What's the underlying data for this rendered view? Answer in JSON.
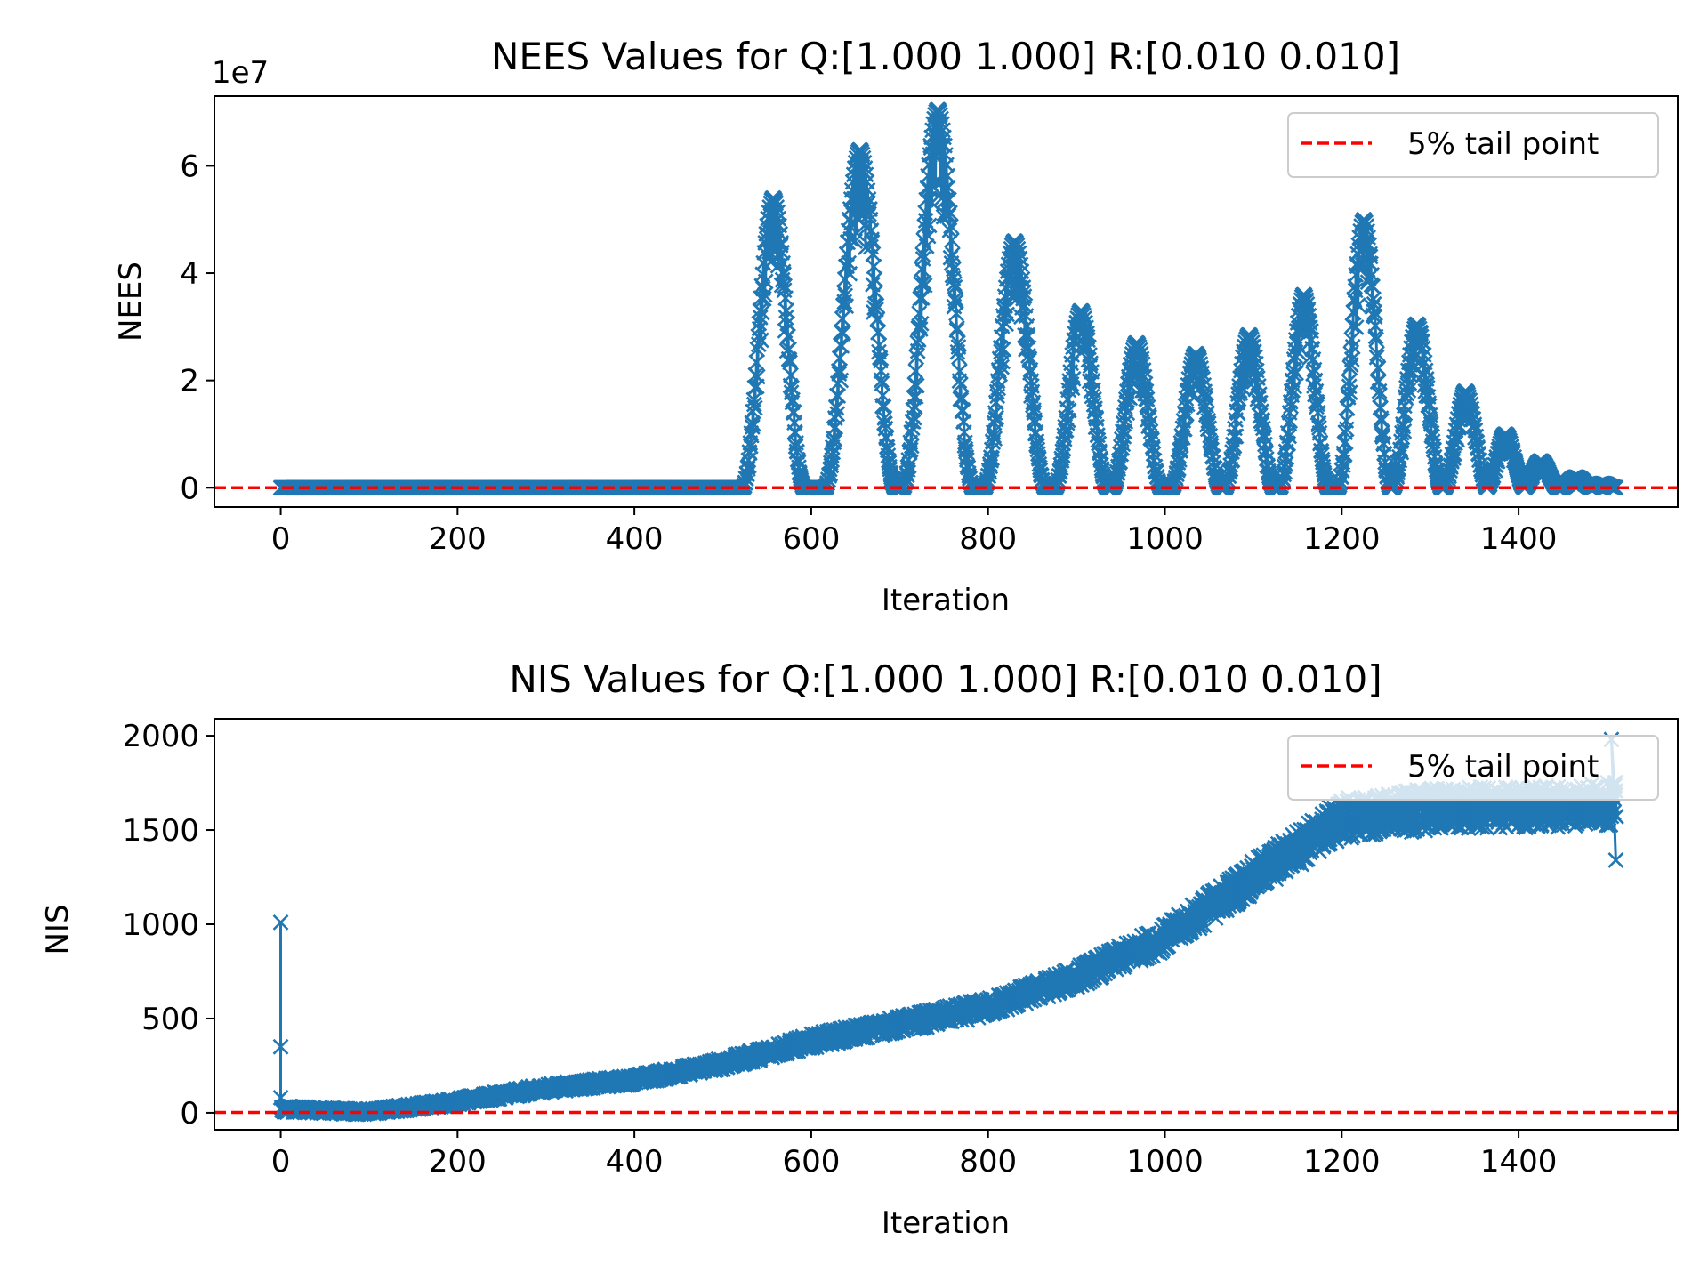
{
  "chart_data": [
    {
      "id": "nees",
      "type": "scatter",
      "title": "NEES Values for Q:[1.000 1.000] R:[0.010 0.010]",
      "xlabel": "Iteration",
      "ylabel": "NEES",
      "y_offset_text": "1e7",
      "y_scale": 10000000,
      "xlim": [
        -75,
        1580
      ],
      "ylim": [
        -3600000,
        73000000
      ],
      "x_ticks": [
        0,
        200,
        400,
        600,
        800,
        1000,
        1200,
        1400
      ],
      "y_ticks": [
        0,
        20000000,
        40000000,
        60000000
      ],
      "y_tick_labels": [
        "0",
        "2",
        "4",
        "6"
      ],
      "legend": {
        "position": "top-right",
        "entries": [
          {
            "label": "5% tail point",
            "style": "dashed-line",
            "color": "#ff0000"
          }
        ]
      },
      "threshold": {
        "name": "5% tail point",
        "y": 0,
        "color": "#ff0000"
      },
      "series": [
        {
          "marker": "x",
          "color": "#1f77b4",
          "x_range": [
            0,
            1510
          ],
          "baseline_until": 520,
          "peaks": [
            {
              "x": 557,
              "y": 54000000,
              "half_width": 35
            },
            {
              "x": 655,
              "y": 63000000,
              "half_width": 40
            },
            {
              "x": 743,
              "y": 70500000,
              "half_width": 40
            },
            {
              "x": 830,
              "y": 46000000,
              "half_width": 35
            },
            {
              "x": 905,
              "y": 33000000,
              "half_width": 30
            },
            {
              "x": 968,
              "y": 27000000,
              "half_width": 28
            },
            {
              "x": 1035,
              "y": 25000000,
              "half_width": 28
            },
            {
              "x": 1095,
              "y": 28500000,
              "half_width": 28
            },
            {
              "x": 1157,
              "y": 36000000,
              "half_width": 28
            },
            {
              "x": 1225,
              "y": 50000000,
              "half_width": 30
            },
            {
              "x": 1285,
              "y": 30500000,
              "half_width": 28
            },
            {
              "x": 1340,
              "y": 18000000,
              "half_width": 25
            },
            {
              "x": 1385,
              "y": 10000000,
              "half_width": 22
            },
            {
              "x": 1425,
              "y": 5000000,
              "half_width": 20
            },
            {
              "x": 1465,
              "y": 2000000,
              "half_width": 18
            },
            {
              "x": 1495,
              "y": 800000,
              "half_width": 15
            }
          ]
        }
      ]
    },
    {
      "id": "nis",
      "type": "scatter",
      "title": "NIS Values for Q:[1.000 1.000] R:[0.010 0.010]",
      "xlabel": "Iteration",
      "ylabel": "NIS",
      "xlim": [
        -75,
        1580
      ],
      "ylim": [
        -90,
        2090
      ],
      "x_ticks": [
        0,
        200,
        400,
        600,
        800,
        1000,
        1200,
        1400
      ],
      "y_ticks": [
        0,
        500,
        1000,
        1500,
        2000
      ],
      "y_tick_labels": [
        "0",
        "500",
        "1000",
        "1500",
        "2000"
      ],
      "legend": {
        "position": "top-right",
        "entries": [
          {
            "label": "5% tail point",
            "style": "dashed-line",
            "color": "#ff0000"
          }
        ]
      },
      "threshold": {
        "name": "5% tail point",
        "y": 2,
        "color": "#ff0000"
      },
      "series": [
        {
          "marker": "x",
          "color": "#1f77b4",
          "x_range": [
            0,
            1510
          ],
          "initial_points": [
            {
              "x": 0,
              "y": 1010
            },
            {
              "x": 0,
              "y": 350
            },
            {
              "x": 0,
              "y": 80
            }
          ],
          "trend": [
            {
              "x": 0,
              "y": 20
            },
            {
              "x": 100,
              "y": 5
            },
            {
              "x": 200,
              "y": 60
            },
            {
              "x": 300,
              "y": 130
            },
            {
              "x": 400,
              "y": 175
            },
            {
              "x": 500,
              "y": 260
            },
            {
              "x": 600,
              "y": 380
            },
            {
              "x": 700,
              "y": 470
            },
            {
              "x": 800,
              "y": 560
            },
            {
              "x": 900,
              "y": 720
            },
            {
              "x": 1000,
              "y": 930
            },
            {
              "x": 1100,
              "y": 1250
            },
            {
              "x": 1200,
              "y": 1560
            },
            {
              "x": 1300,
              "y": 1610
            },
            {
              "x": 1400,
              "y": 1620
            },
            {
              "x": 1510,
              "y": 1640
            }
          ],
          "extremes": [
            {
              "x": 1505,
              "y": 1980
            },
            {
              "x": 1510,
              "y": 1340
            }
          ]
        }
      ]
    }
  ]
}
